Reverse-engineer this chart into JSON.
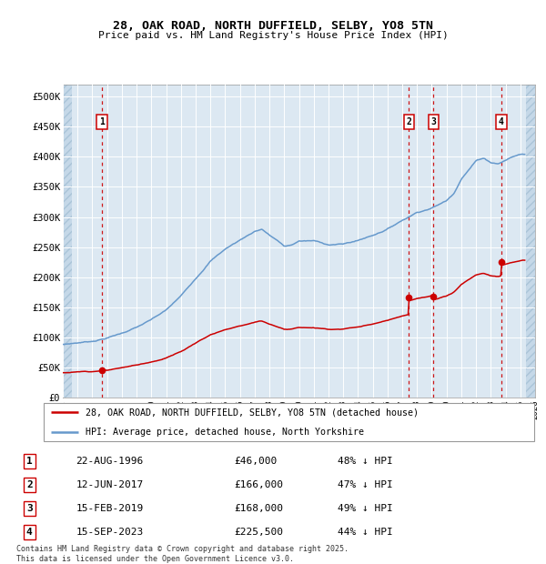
{
  "title_line1": "28, OAK ROAD, NORTH DUFFIELD, SELBY, YO8 5TN",
  "title_line2": "Price paid vs. HM Land Registry's House Price Index (HPI)",
  "ylim": [
    0,
    520000
  ],
  "ytick_labels": [
    "£0",
    "£50K",
    "£100K",
    "£150K",
    "£200K",
    "£250K",
    "£300K",
    "£350K",
    "£400K",
    "£450K",
    "£500K"
  ],
  "hpi_color": "#6699cc",
  "price_color": "#cc0000",
  "background_color": "#dce8f2",
  "grid_color": "#ffffff",
  "transaction_dates": [
    1996.644,
    2017.44,
    2019.12,
    2023.71
  ],
  "transaction_prices": [
    46000,
    166000,
    168000,
    225500
  ],
  "transaction_labels": [
    "1",
    "2",
    "3",
    "4"
  ],
  "legend_line1": "28, OAK ROAD, NORTH DUFFIELD, SELBY, YO8 5TN (detached house)",
  "legend_line2": "HPI: Average price, detached house, North Yorkshire",
  "table_data": [
    [
      "1",
      "22-AUG-1996",
      "£46,000",
      "48% ↓ HPI"
    ],
    [
      "2",
      "12-JUN-2017",
      "£166,000",
      "47% ↓ HPI"
    ],
    [
      "3",
      "15-FEB-2019",
      "£168,000",
      "49% ↓ HPI"
    ],
    [
      "4",
      "15-SEP-2023",
      "£225,500",
      "44% ↓ HPI"
    ]
  ],
  "footer_text": "Contains HM Land Registry data © Crown copyright and database right 2025.\nThis data is licensed under the Open Government Licence v3.0.",
  "xmin": 1994.0,
  "xmax": 2026.0,
  "hpi_anchor_years": [
    1994,
    1995,
    1996,
    1997,
    1998,
    1999,
    2000,
    2001,
    2002,
    2003,
    2004,
    2005,
    2006,
    2007,
    2007.5,
    2008,
    2008.5,
    2009,
    2009.5,
    2010,
    2011,
    2012,
    2013,
    2014,
    2015,
    2016,
    2017,
    2017.5,
    2018,
    2018.5,
    2019,
    2019.5,
    2020,
    2020.5,
    2021,
    2021.5,
    2022,
    2022.5,
    2023,
    2023.5,
    2024,
    2024.5,
    2025
  ],
  "hpi_anchor_vals": [
    88000,
    91000,
    94000,
    100000,
    108000,
    118000,
    130000,
    145000,
    168000,
    198000,
    228000,
    248000,
    263000,
    278000,
    282000,
    272000,
    264000,
    253000,
    255000,
    262000,
    262000,
    256000,
    257000,
    263000,
    272000,
    283000,
    298000,
    305000,
    312000,
    316000,
    320000,
    326000,
    332000,
    345000,
    370000,
    385000,
    400000,
    405000,
    398000,
    396000,
    402000,
    408000,
    412000
  ]
}
